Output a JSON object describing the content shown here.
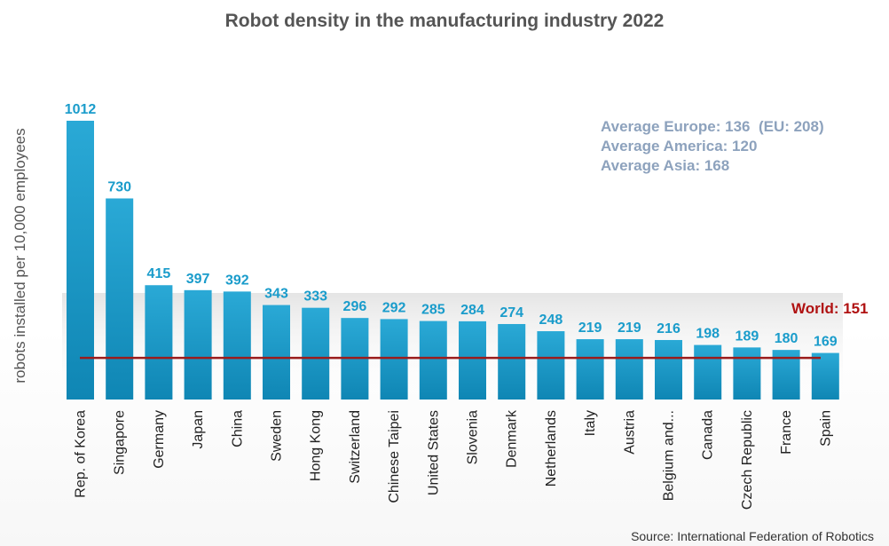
{
  "chart_data": {
    "type": "bar",
    "title": "Robot density in the manufacturing industry 2022",
    "ylabel": "robots installed per 10,000 employees",
    "xlabel": "",
    "categories": [
      "Rep. of Korea",
      "Singapore",
      "Germany",
      "Japan",
      "China",
      "Sweden",
      "Hong Kong",
      "Switzerland",
      "Chinese Taipei",
      "United States",
      "Slovenia",
      "Denmark",
      "Netherlands",
      "Italy",
      "Austria",
      "Belgium and...",
      "Canada",
      "Czech Republic",
      "France",
      "Spain"
    ],
    "values": [
      1012,
      730,
      415,
      397,
      392,
      343,
      333,
      296,
      292,
      285,
      284,
      274,
      248,
      219,
      219,
      216,
      198,
      189,
      180,
      169
    ],
    "ylim": [
      0,
      1012
    ],
    "grid": false,
    "reference_line": {
      "label": "World: 151",
      "value": 151,
      "color": "#9b1c1c"
    },
    "annotations": [
      "Average Europe: 136  (EU: 208)",
      "Average America: 120",
      "Average Asia: 168"
    ],
    "source": "Source: International Federation of Robotics",
    "colors": {
      "bar": "#1a9ccb",
      "bar_light": "#3db2dd",
      "bar_dark": "#0f7fa8",
      "value_label": "#1a9ccb",
      "text": "#555555",
      "annotation": "#8da2bd"
    }
  }
}
